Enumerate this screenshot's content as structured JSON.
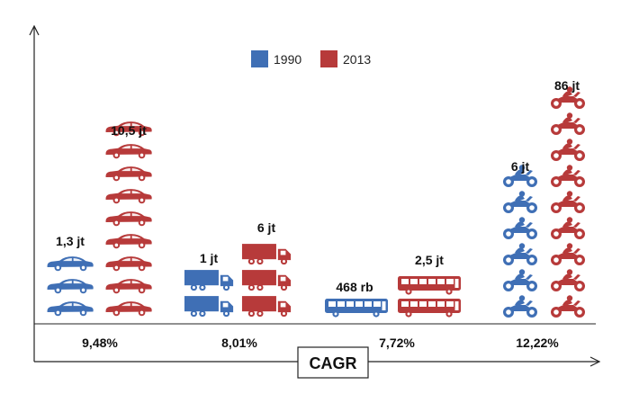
{
  "chart_data": {
    "type": "pictogram-bar",
    "legend": [
      {
        "label": "1990",
        "color": "#3f6fb5"
      },
      {
        "label": "2013",
        "color": "#b73a3a"
      }
    ],
    "x_footer_title": "CAGR",
    "categories": [
      {
        "icon": "car-icon",
        "label_1990": "1,3 jt",
        "label_2013": "10,5 jt",
        "icons_1990": 3,
        "icons_2013": 9,
        "cagr": "9,48%"
      },
      {
        "icon": "truck-icon",
        "label_1990": "1 jt",
        "label_2013": "6 jt",
        "icons_1990": 2,
        "icons_2013": 3,
        "cagr": "8,01%"
      },
      {
        "icon": "bus-icon",
        "label_1990": "468 rb",
        "label_2013": "2,5 jt",
        "icons_1990": 1,
        "icons_2013": 2,
        "cagr": "7,72%"
      },
      {
        "icon": "motorcycle-icon",
        "label_1990": "6 jt",
        "label_2013": "86 jt",
        "icons_1990": 6,
        "icons_2013": 9,
        "cagr": "12,22%"
      }
    ],
    "series": [
      {
        "name": "1990",
        "values": [
          1.3,
          1,
          0.468,
          6
        ]
      },
      {
        "name": "2013",
        "values": [
          10.5,
          6,
          2.5,
          86
        ]
      }
    ]
  }
}
